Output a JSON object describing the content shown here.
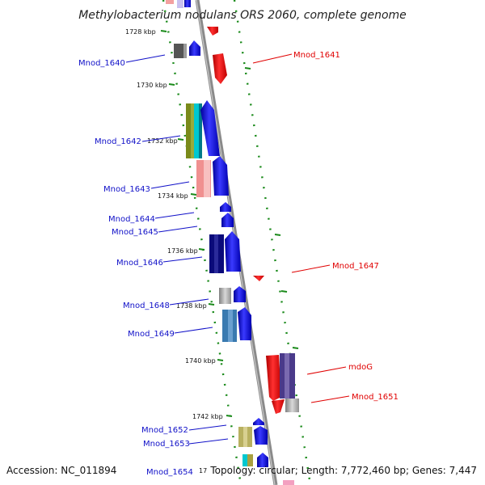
{
  "title": "Methylobacterium nodulans ORS 2060, complete genome",
  "footer": {
    "accession": "Accession: NC_011894",
    "summary": "Topology: circular; Length: 7,772,460 bp; Genes: 7,447"
  },
  "colors": {
    "forward_label": "#1010c8",
    "reverse_label": "#e00000",
    "backbone": "#8a8a8a",
    "gc_dots": "#1a8a1a"
  },
  "ticks": [
    "1728 kbp",
    "1730 kbp",
    "1732 kbp",
    "1734 kbp",
    "1736 kbp",
    "1738 kbp",
    "1740 kbp",
    "1742 kbp",
    "17"
  ],
  "genes": {
    "Mnod_1640": "Mnod_1640",
    "Mnod_1641": "Mnod_1641",
    "Mnod_1642": "Mnod_1642",
    "Mnod_1643": "Mnod_1643",
    "Mnod_1644": "Mnod_1644",
    "Mnod_1645": "Mnod_1645",
    "Mnod_1646": "Mnod_1646",
    "Mnod_1647": "Mnod_1647",
    "Mnod_1648": "Mnod_1648",
    "Mnod_1649": "Mnod_1649",
    "mdoG": "mdoG",
    "Mnod_1651": "Mnod_1651",
    "Mnod_1652": "Mnod_1652",
    "Mnod_1653": "Mnod_1653",
    "Mnod_1654": "Mnod_1654"
  }
}
